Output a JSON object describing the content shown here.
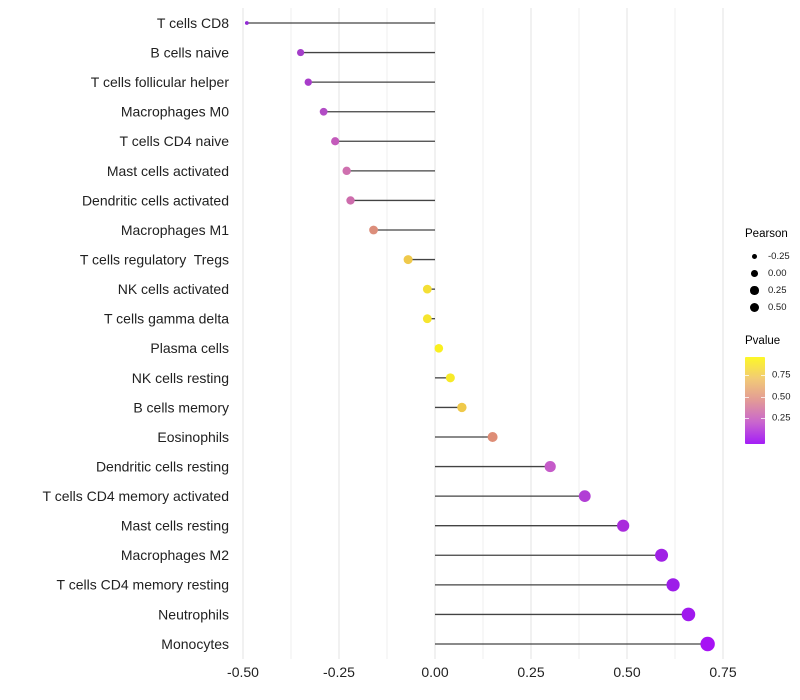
{
  "chart_data": {
    "type": "lollipop",
    "title": "",
    "xlabel": "",
    "ylabel": "",
    "x_axis": {
      "tick_labels": [
        "-0.50",
        "-0.25",
        "0.00",
        "0.25",
        "0.50",
        "0.75"
      ],
      "tick_values": [
        -0.5,
        -0.25,
        0.0,
        0.25,
        0.5,
        0.75
      ],
      "minor_values": [
        -0.375,
        -0.125,
        0.125,
        0.375,
        0.625
      ],
      "range": [
        -0.52,
        0.805
      ],
      "grid": "vertical-only"
    },
    "rows": [
      {
        "label": "T cells CD8",
        "pearson": -0.49,
        "dot_color": "#9229D5",
        "r": 1.9
      },
      {
        "label": "B cells naive",
        "pearson": -0.35,
        "dot_color": "#A43EC9",
        "r": 3.6
      },
      {
        "label": "T cells follicular helper",
        "pearson": -0.33,
        "dot_color": "#A83CCA",
        "r": 3.7
      },
      {
        "label": "Macrophages M0",
        "pearson": -0.29,
        "dot_color": "#B24CC5",
        "r": 3.9
      },
      {
        "label": "T cells CD4 naive",
        "pearson": -0.26,
        "dot_color": "#C35ABB",
        "r": 4.1
      },
      {
        "label": "Mast cells activated",
        "pearson": -0.23,
        "dot_color": "#CF70AF",
        "r": 4.2
      },
      {
        "label": "Dendritic cells activated",
        "pearson": -0.22,
        "dot_color": "#CD6CAC",
        "r": 4.2
      },
      {
        "label": "Macrophages M1",
        "pearson": -0.16,
        "dot_color": "#DC8E7B",
        "r": 4.4
      },
      {
        "label": "T cells regulatory  Tregs",
        "pearson": -0.07,
        "dot_color": "#EFC94B",
        "r": 4.5
      },
      {
        "label": "NK cells activated",
        "pearson": -0.02,
        "dot_color": "#F4DF35",
        "r": 4.4
      },
      {
        "label": "T cells gamma delta",
        "pearson": -0.02,
        "dot_color": "#F6E52E",
        "r": 4.4
      },
      {
        "label": "Plasma cells",
        "pearson": 0.01,
        "dot_color": "#FAF01F",
        "r": 4.3
      },
      {
        "label": "NK cells resting",
        "pearson": 0.04,
        "dot_color": "#F7EA28",
        "r": 4.5
      },
      {
        "label": "B cells memory",
        "pearson": 0.07,
        "dot_color": "#EFC94A",
        "r": 4.7
      },
      {
        "label": "Eosinophils",
        "pearson": 0.15,
        "dot_color": "#DE8D76",
        "r": 5.0
      },
      {
        "label": "Dendritic cells resting",
        "pearson": 0.3,
        "dot_color": "#C55BC9",
        "r": 5.6
      },
      {
        "label": "T cells CD4 memory activated",
        "pearson": 0.39,
        "dot_color": "#B13ED5",
        "r": 5.9
      },
      {
        "label": "Mast cells resting",
        "pearson": 0.49,
        "dot_color": "#A92BDC",
        "r": 6.1
      },
      {
        "label": "Macrophages M2",
        "pearson": 0.59,
        "dot_color": "#A021E5",
        "r": 6.5
      },
      {
        "label": "T cells CD4 memory resting",
        "pearson": 0.62,
        "dot_color": "#9D1DE9",
        "r": 6.6
      },
      {
        "label": "Neutrophils",
        "pearson": 0.66,
        "dot_color": "#A019EE",
        "r": 6.8
      },
      {
        "label": "Monocytes",
        "pearson": 0.71,
        "dot_color": "#A712F4",
        "r": 7.2
      }
    ],
    "legend_size": {
      "title": "Pearson",
      "items": [
        {
          "label": "-0.25",
          "r": 2.7
        },
        {
          "label": "0.00",
          "r": 3.4
        },
        {
          "label": "0.25",
          "r": 4.1
        },
        {
          "label": "0.50",
          "r": 4.7
        }
      ]
    },
    "legend_color": {
      "title": "Pvalue",
      "gradient_bottom_to_top": [
        "#A41EF7",
        "#C966CE",
        "#E29A97",
        "#F2CA76",
        "#FDF827"
      ],
      "ticks": [
        {
          "label": "0.75",
          "frac_from_bottom": 0.79
        },
        {
          "label": "0.50",
          "frac_from_bottom": 0.542
        },
        {
          "label": "0.25",
          "frac_from_bottom": 0.294
        }
      ]
    },
    "colors": {
      "segment": "#434343",
      "grid_major": "#E3E3E3",
      "grid_minor": "#EFEFEF",
      "axis_text": "#212121",
      "background": "#FFFFFF"
    }
  }
}
